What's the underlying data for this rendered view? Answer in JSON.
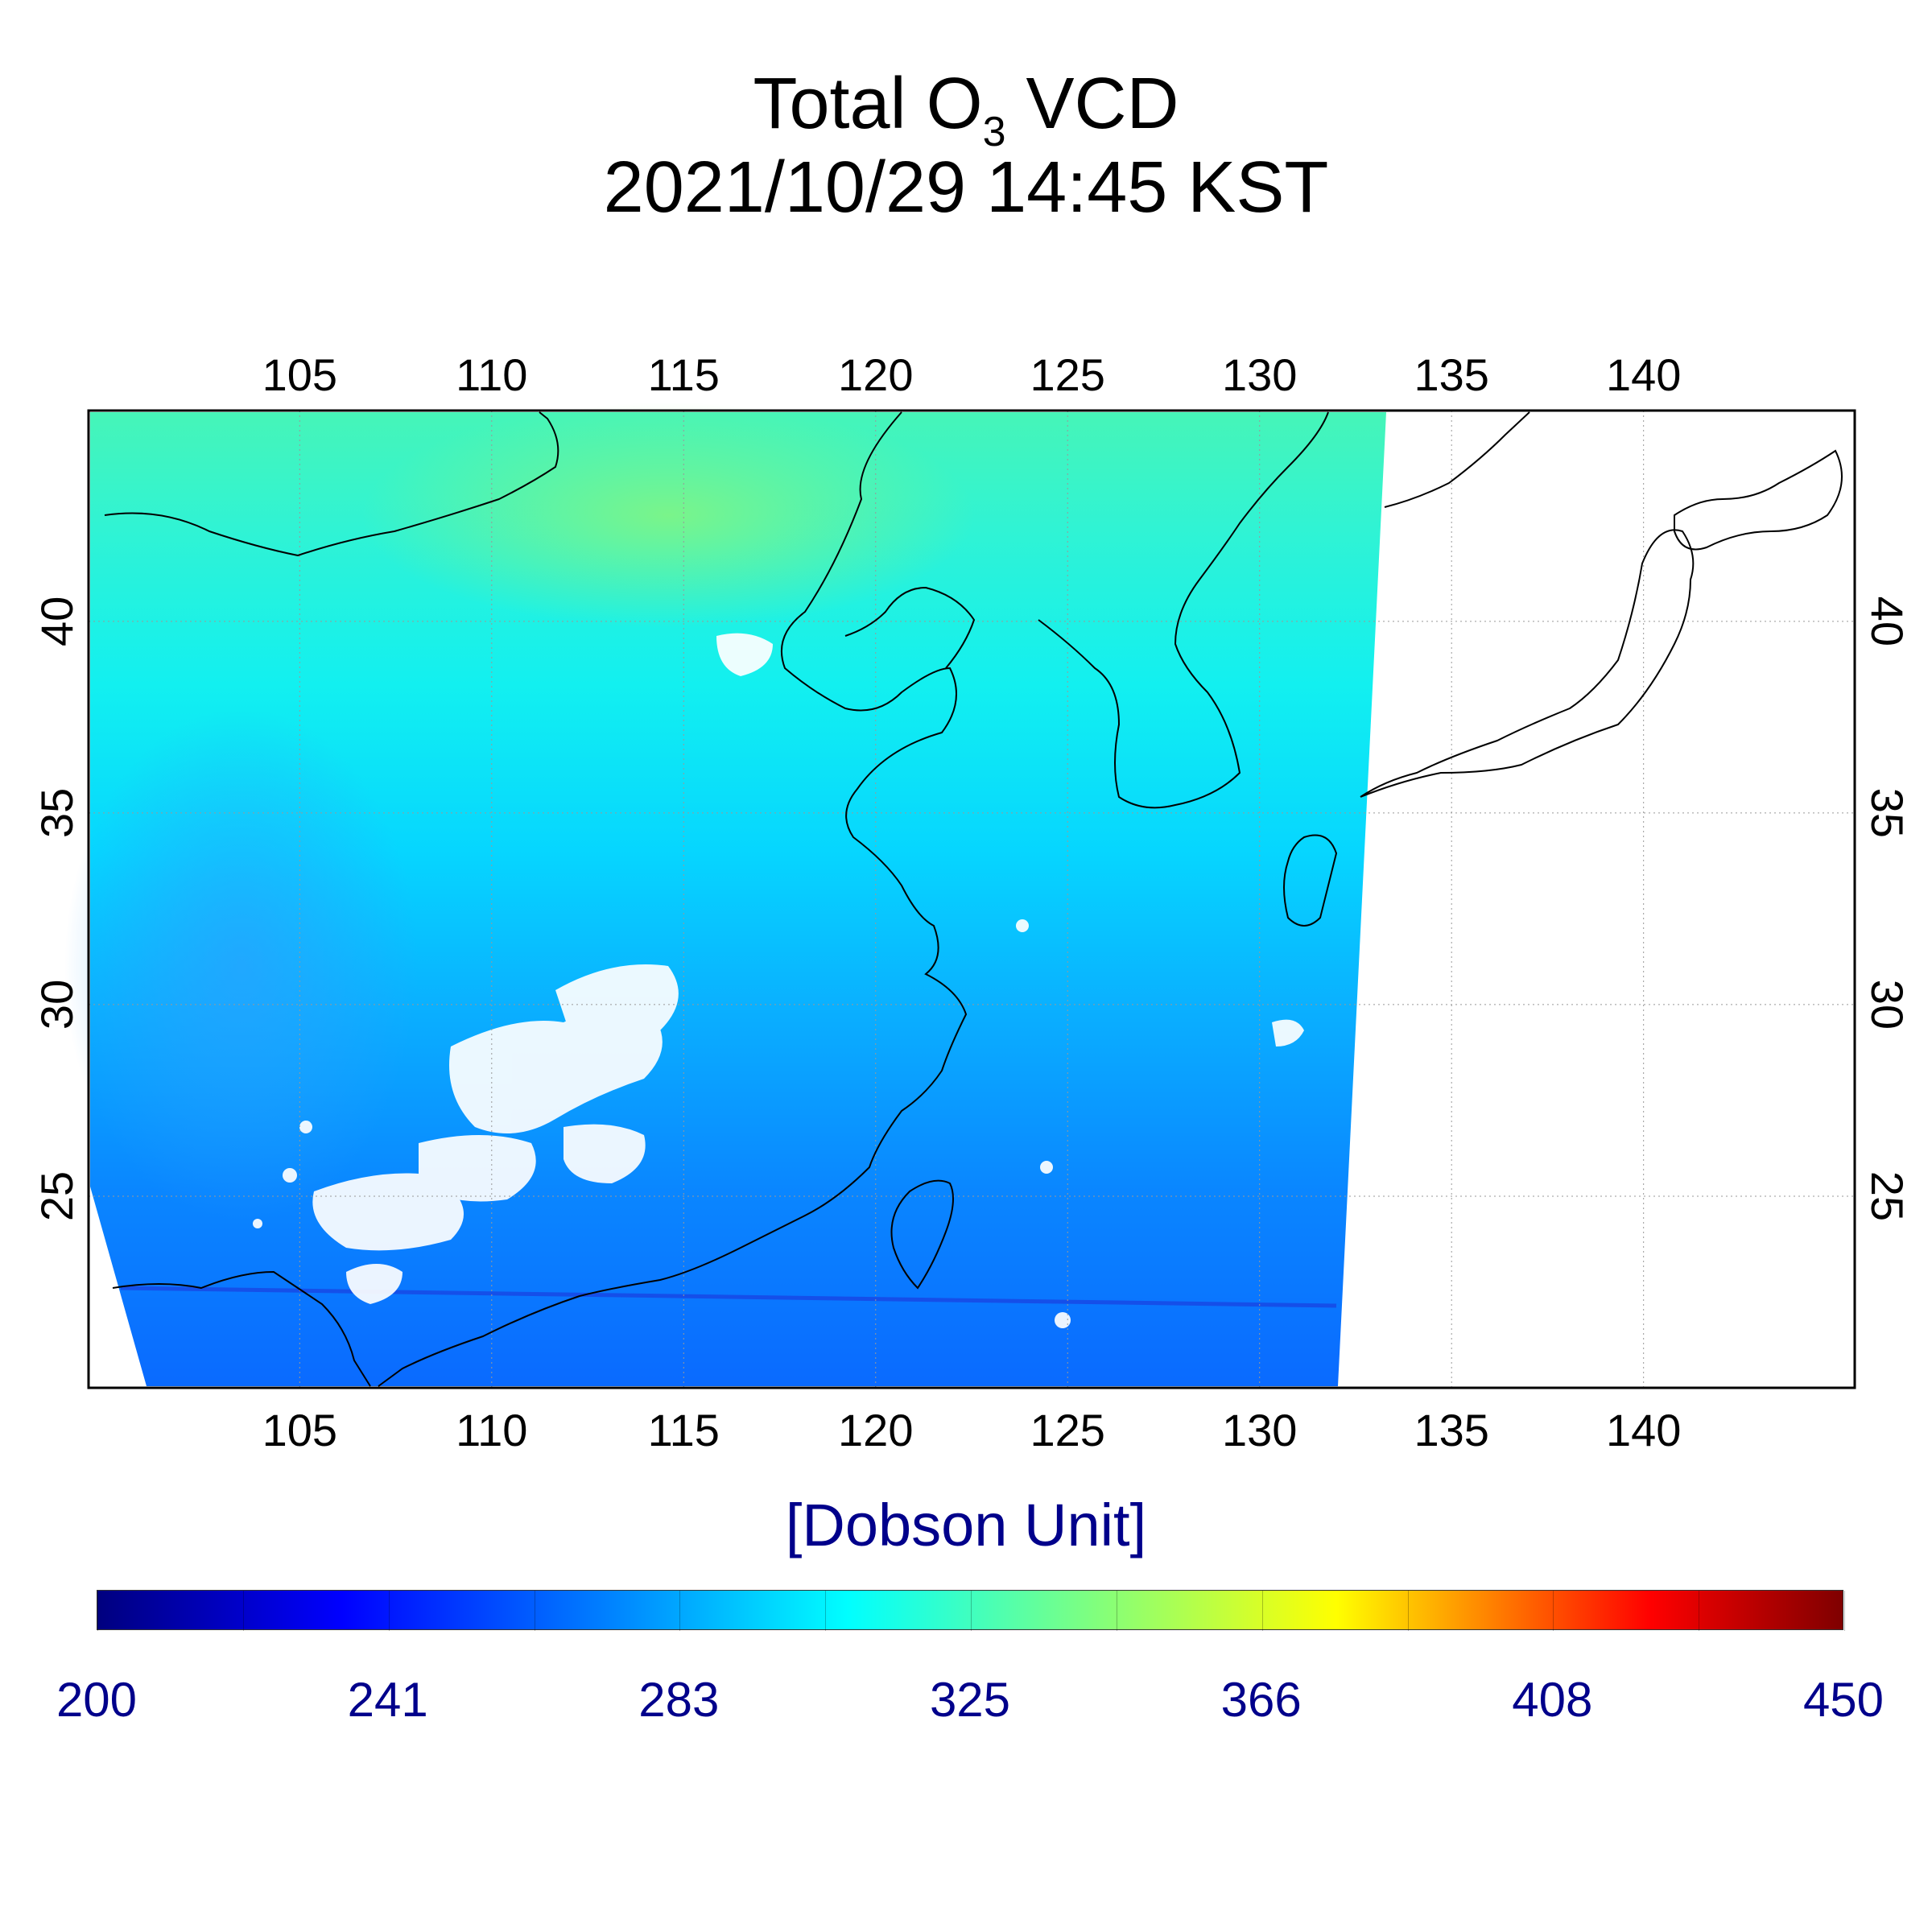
{
  "title": {
    "line1_prefix": "Total O",
    "line1_sub": "3",
    "line1_suffix": " VCD",
    "line2": "2021/10/29 14:45 KST"
  },
  "map": {
    "lon_range": [
      99.5,
      145.5
    ],
    "lat_range": [
      20.0,
      45.5
    ],
    "lon_ticks": [
      "105",
      "110",
      "115",
      "120",
      "125",
      "130",
      "135",
      "140"
    ],
    "lat_ticks": [
      "25",
      "30",
      "35",
      "40"
    ],
    "grid": true
  },
  "colorbar": {
    "unit_label": "[Dobson Unit]",
    "tick_labels": [
      "200",
      "241",
      "283",
      "325",
      "366",
      "408",
      "450"
    ],
    "range": [
      200,
      450
    ],
    "colormap": "jet"
  },
  "colors": {
    "label_blue": "#00008b",
    "frame": "#000000",
    "grid": "#999999"
  }
}
